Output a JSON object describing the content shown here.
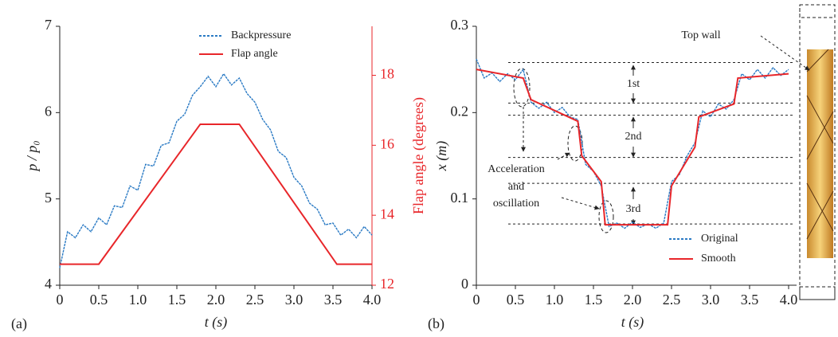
{
  "chart_data": [
    {
      "type": "line",
      "panel_label": "(a)",
      "xlabel": "t (s)",
      "ylabel": "p / p₀",
      "y2label": "Flap angle (degrees)",
      "xlim": [
        0,
        4
      ],
      "xticks": [
        0,
        0.5,
        {
          "value": 1,
          "label": "1.0"
        },
        1.5,
        {
          "value": 2,
          "label": "2.0"
        },
        2.5,
        {
          "value": 3,
          "label": "3.0"
        },
        3.5,
        {
          "value": 4,
          "label": "4.0"
        }
      ],
      "ylim": [
        4,
        7
      ],
      "yticks": [
        4,
        5,
        6,
        7
      ],
      "y2lim": [
        12,
        19.4
      ],
      "y2ticks": [
        12,
        14,
        16,
        18
      ],
      "y2color": "#e8262a",
      "series": [
        {
          "name": "Backpressure",
          "color": "#2a7ac4",
          "linestyle": "dashed",
          "x": [
            0,
            0.1,
            0.2,
            0.3,
            0.4,
            0.5,
            0.6,
            0.7,
            0.8,
            0.9,
            1,
            1.1,
            1.2,
            1.3,
            1.4,
            1.5,
            1.6,
            1.7,
            1.8,
            1.9,
            2,
            2.1,
            2.2,
            2.3,
            2.4,
            2.5,
            2.6,
            2.7,
            2.8,
            2.9,
            3,
            3.1,
            3.2,
            3.3,
            3.4,
            3.5,
            3.6,
            3.7,
            3.8,
            3.9,
            4
          ],
          "values": [
            4.2,
            4.62,
            4.55,
            4.7,
            4.62,
            4.78,
            4.7,
            4.92,
            4.9,
            5.15,
            5.1,
            5.4,
            5.38,
            5.62,
            5.65,
            5.9,
            5.98,
            6.2,
            6.3,
            6.42,
            6.3,
            6.45,
            6.32,
            6.4,
            6.22,
            6.12,
            5.92,
            5.8,
            5.55,
            5.48,
            5.25,
            5.15,
            4.95,
            4.88,
            4.7,
            4.72,
            4.58,
            4.65,
            4.55,
            4.68,
            4.58
          ]
        },
        {
          "name": "Flap angle",
          "color": "#e8262a",
          "linestyle": "solid",
          "axis": "y2",
          "x": [
            0,
            0.5,
            1.8,
            2.3,
            3.55,
            4
          ],
          "values": [
            12.6,
            12.6,
            16.6,
            16.6,
            12.6,
            12.6
          ]
        }
      ]
    },
    {
      "type": "line",
      "panel_label": "(b)",
      "xlabel": "t (s)",
      "ylabel": "x (m)",
      "xlim": [
        0,
        4
      ],
      "xticks": [
        0,
        0.5,
        {
          "value": 1,
          "label": "1.0"
        },
        1.5,
        {
          "value": 2,
          "label": "2.0"
        },
        2.5,
        {
          "value": 3,
          "label": "3.0"
        },
        3.5,
        {
          "value": 4,
          "label": "4.0"
        }
      ],
      "ylim": [
        0,
        0.3
      ],
      "yticks": [
        0,
        0.1,
        0.2,
        0.3
      ],
      "hlines": [
        0.258,
        0.211,
        0.197,
        0.148,
        0.118,
        0.071
      ],
      "annotations": [
        "Top wall",
        "1st",
        "2nd",
        "3rd",
        "Acceleration",
        "and",
        "oscillation"
      ],
      "series": [
        {
          "name": "Original",
          "color": "#2a7ac4",
          "linestyle": "dashed",
          "x": [
            0,
            0.1,
            0.2,
            0.3,
            0.4,
            0.5,
            0.6,
            0.7,
            0.8,
            0.9,
            1,
            1.1,
            1.2,
            1.3,
            1.4,
            1.5,
            1.6,
            1.7,
            1.8,
            1.9,
            2,
            2.1,
            2.2,
            2.3,
            2.4,
            2.5,
            2.6,
            2.7,
            2.8,
            2.9,
            3,
            3.1,
            3.2,
            3.3,
            3.4,
            3.5,
            3.6,
            3.7,
            3.8,
            3.9,
            4
          ],
          "values": [
            0.262,
            0.24,
            0.246,
            0.236,
            0.245,
            0.238,
            0.25,
            0.212,
            0.205,
            0.212,
            0.2,
            0.206,
            0.195,
            0.192,
            0.14,
            0.132,
            0.115,
            0.068,
            0.072,
            0.066,
            0.073,
            0.067,
            0.071,
            0.066,
            0.072,
            0.12,
            0.128,
            0.15,
            0.165,
            0.202,
            0.195,
            0.21,
            0.204,
            0.215,
            0.245,
            0.238,
            0.25,
            0.24,
            0.252,
            0.243,
            0.25
          ]
        },
        {
          "name": "Smooth",
          "color": "#e8262a",
          "linestyle": "solid",
          "x": [
            0,
            0.6,
            0.7,
            1.3,
            1.35,
            1.6,
            1.65,
            2.45,
            2.5,
            2.8,
            2.85,
            3.3,
            3.35,
            4
          ],
          "values": [
            0.25,
            0.24,
            0.215,
            0.19,
            0.15,
            0.12,
            0.07,
            0.07,
            0.115,
            0.16,
            0.195,
            0.21,
            0.24,
            0.245
          ]
        }
      ]
    }
  ]
}
